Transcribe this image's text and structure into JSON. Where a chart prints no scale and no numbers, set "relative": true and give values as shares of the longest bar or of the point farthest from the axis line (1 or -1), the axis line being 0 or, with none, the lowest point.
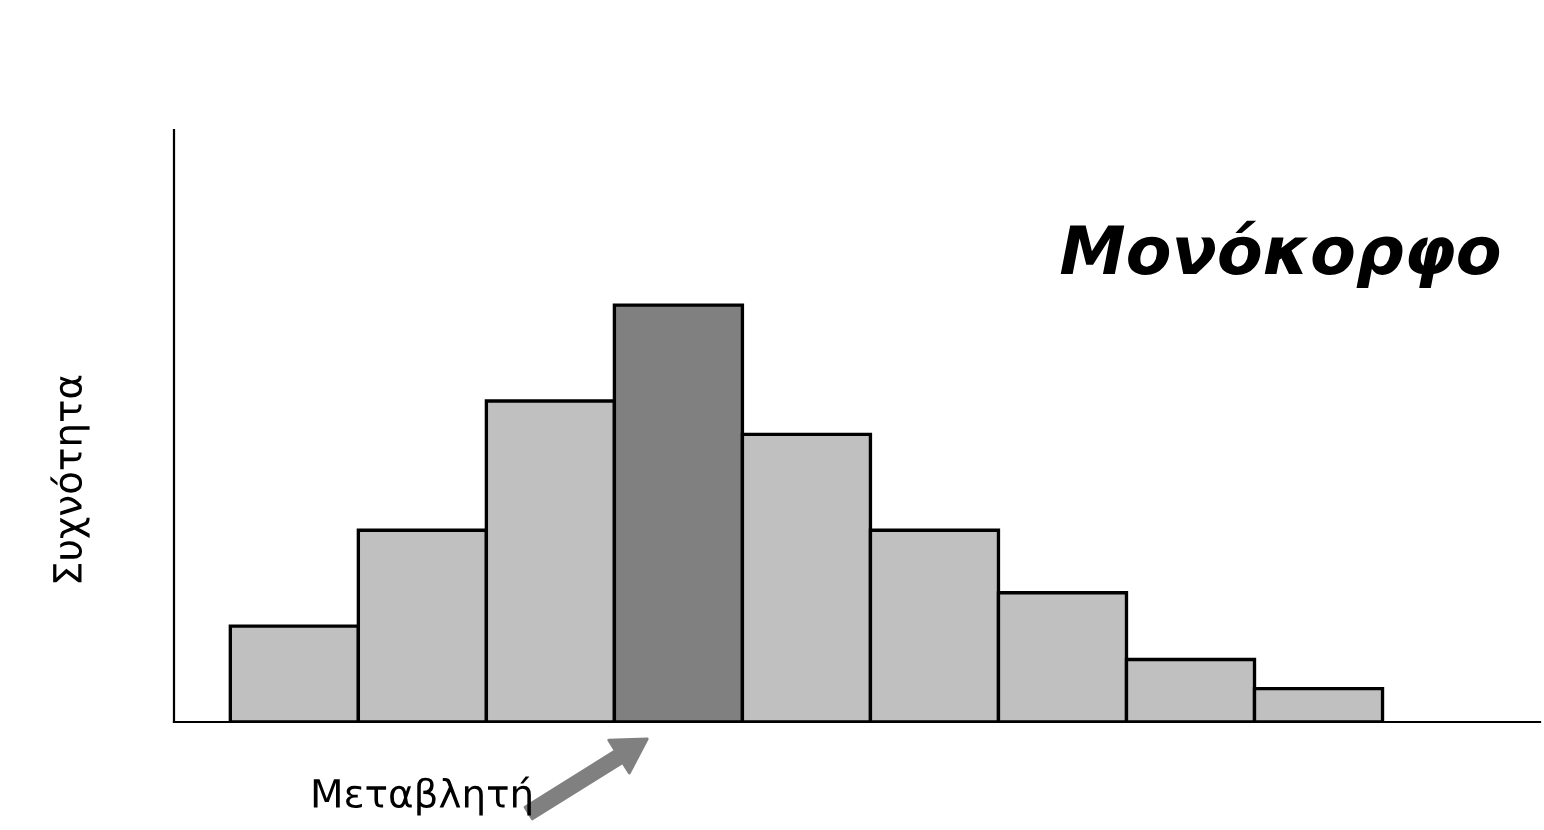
{
  "chart_data": {
    "type": "bar",
    "relative": true,
    "xlabel": "Μεταβλητή",
    "ylabel": "Συχνότητα",
    "annotations": [
      "Μονόκορφο"
    ],
    "categories": [
      null,
      null,
      null,
      null,
      null,
      null,
      null,
      null,
      null
    ],
    "values": [
      0.23,
      0.46,
      0.77,
      1,
      0.69,
      0.46,
      0.31,
      0.15,
      0.08
    ],
    "colors": [
      "#c0c0c0",
      "#c0c0c0",
      "#c0c0c0",
      "#808080",
      "#c0c0c0",
      "#c0c0c0",
      "#c0c0c0",
      "#c0c0c0",
      "#c0c0c0"
    ],
    "grid": false,
    "legend": false
  }
}
